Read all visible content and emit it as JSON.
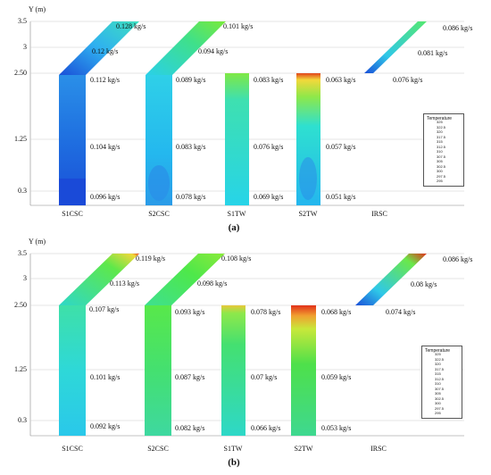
{
  "axis": {
    "y_title": "Y (m)",
    "y_ticks": [
      "3.5",
      "3",
      "2.50",
      "1.25",
      "0.3"
    ]
  },
  "x_labels": [
    "S1CSC",
    "S2CSC",
    "S1TW",
    "S2TW",
    "IRSC"
  ],
  "legend": {
    "title": "Temperature",
    "ticks": [
      "325",
      "322.5",
      "320",
      "317.5",
      "315",
      "312.5",
      "310",
      "307.5",
      "305",
      "302.5",
      "300",
      "297.5",
      "295"
    ]
  },
  "colors": {
    "cold": "#1a3fd8",
    "cyan": "#22e0f0",
    "green": "#3fe04a",
    "yellow": "#f6e23a",
    "hot": "#e23b1a"
  },
  "panel_a": {
    "caption": "(a)",
    "flow_labels": {
      "s1csc": [
        "0.128 kg/s",
        "0.12 kg/s",
        "0.112 kg/s",
        "0.104 kg/s",
        "0.096 kg/s"
      ],
      "s2csc": [
        "0.101 kg/s",
        "0.094 kg/s",
        "0.089 kg/s",
        "0.083 kg/s",
        "0.078 kg/s"
      ],
      "s1tw": [
        "0.083 kg/s",
        "0.076 kg/s",
        "0.069 kg/s"
      ],
      "s2tw": [
        "0.063 kg/s",
        "0.057 kg/s",
        "0.051 kg/s"
      ],
      "irsc": [
        "0.086 kg/s",
        "0.081 kg/s",
        "0.076 kg/s"
      ]
    }
  },
  "panel_b": {
    "caption": "(b)",
    "flow_labels": {
      "s1csc": [
        "0.119 kg/s",
        "0.113 kg/s",
        "0.107 kg/s",
        "0.101 kg/s",
        "0.092 kg/s"
      ],
      "s2csc": [
        "0.108 kg/s",
        "0.098 kg/s",
        "0.093 kg/s",
        "0.087 kg/s",
        "0.082 kg/s"
      ],
      "s1tw": [
        "0.078 kg/s",
        "0.07 kg/s",
        "0.066 kg/s"
      ],
      "s2tw": [
        "0.068 kg/s",
        "0.059 kg/s",
        "0.053 kg/s"
      ],
      "irsc": [
        "0.086 kg/s",
        "0.08 kg/s",
        "0.074 kg/s"
      ]
    }
  }
}
